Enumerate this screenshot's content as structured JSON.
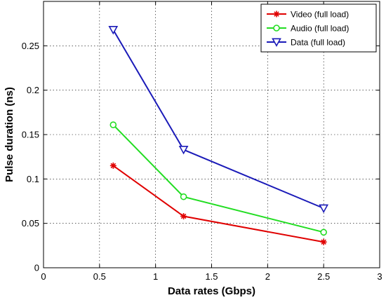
{
  "chart_data": {
    "type": "line",
    "xlabel": "Data rates (Gbps)",
    "ylabel": "Pulse duration (ns)",
    "xlim": [
      0,
      3
    ],
    "ylim": [
      0,
      0.3
    ],
    "xticks": [
      0,
      0.5,
      1,
      1.5,
      2,
      2.5,
      3
    ],
    "yticks": [
      0,
      0.05,
      0.1,
      0.15,
      0.2,
      0.25
    ],
    "xtick_labels": [
      "0",
      "0.5",
      "1",
      "1.5",
      "2",
      "2.5",
      "3"
    ],
    "ytick_labels": [
      "0",
      "0.05",
      "0.1",
      "0.15",
      "0.2",
      "0.25"
    ],
    "grid": true,
    "legend_position": "top-right",
    "x": [
      0.622,
      1.25,
      2.5
    ],
    "series": [
      {
        "name": "Video (full load)",
        "color": "#e00000",
        "marker": "star",
        "values": [
          0.115,
          0.058,
          0.029
        ]
      },
      {
        "name": "Audio (full load)",
        "color": "#22dd22",
        "marker": "circle",
        "values": [
          0.161,
          0.08,
          0.04
        ]
      },
      {
        "name": "Data (full load)",
        "color": "#1a1ab8",
        "marker": "triangle-down",
        "values": [
          0.268,
          0.133,
          0.067
        ]
      }
    ]
  }
}
